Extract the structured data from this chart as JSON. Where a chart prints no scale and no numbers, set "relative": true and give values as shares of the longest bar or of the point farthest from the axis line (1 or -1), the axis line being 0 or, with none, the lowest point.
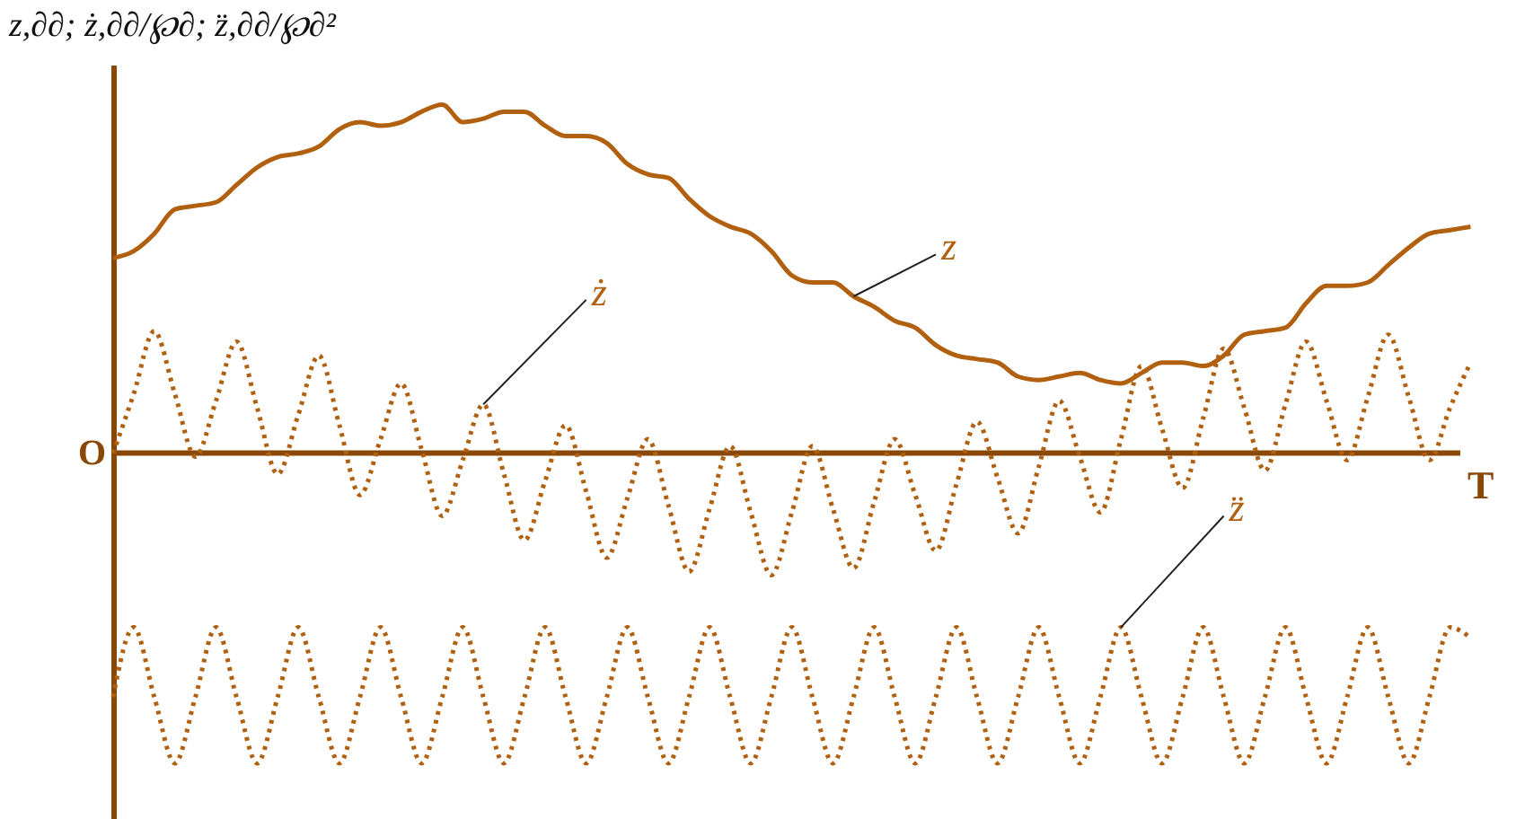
{
  "chart_data": {
    "type": "line",
    "relative": true,
    "ylabel": "z,∂∂; ż,∂∂/℘∂; z̈,∂∂/℘∂²",
    "xlabel": "T",
    "annotations": [
      "O"
    ],
    "legend": false,
    "ref_lines": [
      {
        "axis": "y",
        "value": 0
      }
    ],
    "grid": false,
    "marker": "none",
    "categories": [
      null,
      null,
      null,
      null,
      null,
      null,
      null,
      null,
      null,
      null,
      null,
      null,
      null,
      null,
      null,
      null,
      null,
      null,
      null,
      null,
      null,
      null,
      null,
      null,
      null,
      null,
      null,
      null,
      null,
      null,
      null,
      null,
      null,
      null,
      null,
      null,
      null,
      null,
      null,
      null,
      null,
      null,
      null,
      null,
      null,
      null,
      null,
      null,
      null,
      null,
      null,
      null,
      null,
      null,
      null,
      null,
      null,
      null,
      null,
      null,
      null,
      null,
      null,
      null,
      null,
      null,
      null
    ],
    "series": [
      {
        "name": "z",
        "color": "#b0600f",
        "line_style": "solid",
        "values": [
          0.56,
          0.58,
          0.63,
          0.7,
          0.71,
          0.72,
          0.77,
          0.82,
          0.85,
          0.86,
          0.88,
          0.93,
          0.95,
          0.94,
          0.95,
          0.98,
          1.0,
          0.95,
          0.96,
          0.98,
          0.98,
          0.94,
          0.91,
          0.91,
          0.89,
          0.83,
          0.8,
          0.79,
          0.73,
          0.68,
          0.65,
          0.63,
          0.58,
          0.51,
          0.49,
          0.49,
          0.45,
          0.42,
          0.38,
          0.36,
          0.31,
          0.28,
          0.27,
          0.26,
          0.22,
          0.21,
          0.22,
          0.23,
          0.21,
          0.2,
          0.23,
          0.26,
          0.26,
          0.25,
          0.28,
          0.34,
          0.35,
          0.36,
          0.43,
          0.48,
          0.48,
          0.49,
          0.54,
          0.59,
          0.63,
          0.64,
          0.65
        ]
      },
      {
        "name": "ż",
        "color": "#b0600f",
        "line_style": "dotted",
        "values": [
          0,
          0.17,
          0.35,
          0.17,
          -0.01,
          0.15,
          0.32,
          0.13,
          -0.06,
          0.11,
          0.28,
          0.08,
          -0.12,
          0.04,
          0.2,
          0.01,
          -0.18,
          -0.02,
          0.14,
          -0.06,
          -0.25,
          -0.08,
          0.08,
          -0.11,
          -0.3,
          -0.13,
          0.04,
          -0.15,
          -0.34,
          -0.16,
          0.02,
          -0.17,
          -0.35,
          -0.17,
          0.02,
          -0.16,
          -0.33,
          -0.14,
          0.04,
          -0.12,
          -0.28,
          -0.09,
          0.09,
          -0.07,
          -0.23,
          -0.04,
          0.15,
          -0.01,
          -0.17,
          0.04,
          0.25,
          0.07,
          -0.1,
          0.1,
          0.3,
          0.13,
          -0.05,
          0.14,
          0.32,
          0.15,
          -0.02,
          0.16,
          0.34,
          0.16,
          -0.02,
          0.13,
          0.26
        ]
      },
      {
        "name": "z̈",
        "color": "#b0600f",
        "line_style": "dotted",
        "values": [
          -0.7,
          -0.5,
          -0.7,
          -0.89,
          -0.7,
          -0.5,
          -0.7,
          -0.89,
          -0.7,
          -0.5,
          -0.7,
          -0.89,
          -0.7,
          -0.5,
          -0.7,
          -0.89,
          -0.7,
          -0.5,
          -0.7,
          -0.89,
          -0.7,
          -0.5,
          -0.7,
          -0.89,
          -0.7,
          -0.5,
          -0.7,
          -0.89,
          -0.7,
          -0.5,
          -0.7,
          -0.89,
          -0.7,
          -0.5,
          -0.7,
          -0.89,
          -0.7,
          -0.5,
          -0.7,
          -0.89,
          -0.7,
          -0.5,
          -0.7,
          -0.89,
          -0.7,
          -0.5,
          -0.7,
          -0.89,
          -0.7,
          -0.5,
          -0.7,
          -0.89,
          -0.7,
          -0.5,
          -0.7,
          -0.89,
          -0.7,
          -0.5,
          -0.7,
          -0.89,
          -0.7,
          -0.5,
          -0.7,
          -0.89,
          -0.7,
          -0.5,
          -0.53
        ]
      }
    ]
  }
}
